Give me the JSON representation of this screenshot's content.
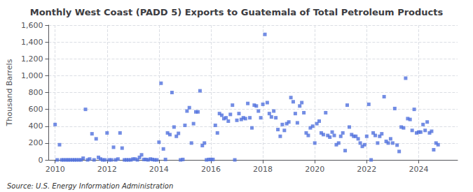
{
  "chart_data": {
    "type": "scatter",
    "title": "Monthly West Coast (PADD 5) Exports to Guatemala of Total Petroleum Products",
    "ylabel": "Thousand Barrels",
    "annotations": [
      "Source: U.S. Energy Information Administration"
    ],
    "marker": "square",
    "grid": true,
    "xlim": [
      2009.75,
      2025.5
    ],
    "xticks": [
      2010,
      2012,
      2014,
      2016,
      2018,
      2020,
      2022,
      2024
    ],
    "ylim": [
      0,
      1600
    ],
    "yticks": [
      0,
      200,
      400,
      600,
      800,
      {
        "value": 1000,
        "label": "1,000"
      },
      {
        "value": 1200,
        "label": "1,200"
      },
      {
        "value": 1400,
        "label": "1,400"
      },
      {
        "value": 1600,
        "label": "1,600"
      }
    ],
    "x": [
      2010.0,
      2010.08,
      2010.17,
      2010.25,
      2010.33,
      2010.42,
      2010.5,
      2010.58,
      2010.67,
      2010.75,
      2010.83,
      2010.92,
      2011.0,
      2011.08,
      2011.17,
      2011.25,
      2011.33,
      2011.42,
      2011.5,
      2011.58,
      2011.67,
      2011.75,
      2011.83,
      2011.92,
      2012.0,
      2012.08,
      2012.17,
      2012.25,
      2012.33,
      2012.42,
      2012.5,
      2012.58,
      2012.67,
      2012.75,
      2012.83,
      2012.92,
      2013.0,
      2013.08,
      2013.17,
      2013.25,
      2013.33,
      2013.42,
      2013.5,
      2013.58,
      2013.67,
      2013.75,
      2013.83,
      2013.92,
      2014.0,
      2014.08,
      2014.17,
      2014.25,
      2014.33,
      2014.42,
      2014.5,
      2014.58,
      2014.67,
      2014.75,
      2014.83,
      2014.92,
      2015.0,
      2015.08,
      2015.17,
      2015.25,
      2015.33,
      2015.42,
      2015.5,
      2015.58,
      2015.67,
      2015.75,
      2015.83,
      2015.92,
      2016.0,
      2016.08,
      2016.17,
      2016.25,
      2016.33,
      2016.42,
      2016.5,
      2016.58,
      2016.67,
      2016.75,
      2016.83,
      2016.92,
      2017.0,
      2017.08,
      2017.17,
      2017.25,
      2017.33,
      2017.42,
      2017.5,
      2017.58,
      2017.67,
      2017.75,
      2017.83,
      2017.92,
      2018.0,
      2018.08,
      2018.17,
      2018.25,
      2018.33,
      2018.42,
      2018.5,
      2018.58,
      2018.67,
      2018.75,
      2018.83,
      2018.92,
      2019.0,
      2019.08,
      2019.17,
      2019.25,
      2019.33,
      2019.42,
      2019.5,
      2019.58,
      2019.67,
      2019.75,
      2019.83,
      2019.92,
      2020.0,
      2020.08,
      2020.17,
      2020.25,
      2020.33,
      2020.42,
      2020.5,
      2020.58,
      2020.67,
      2020.75,
      2020.83,
      2020.92,
      2021.0,
      2021.08,
      2021.17,
      2021.25,
      2021.33,
      2021.42,
      2021.5,
      2021.58,
      2021.67,
      2021.75,
      2021.83,
      2021.92,
      2022.0,
      2022.08,
      2022.17,
      2022.25,
      2022.33,
      2022.42,
      2022.5,
      2022.58,
      2022.67,
      2022.75,
      2022.83,
      2022.92,
      2023.0,
      2023.08,
      2023.17,
      2023.25,
      2023.33,
      2023.42,
      2023.5,
      2023.58,
      2023.67,
      2023.75,
      2023.83,
      2023.92,
      2024.0,
      2024.08,
      2024.17,
      2024.25,
      2024.33,
      2024.42,
      2024.5,
      2024.58,
      2024.67,
      2024.75
    ],
    "values": [
      420,
      0,
      180,
      0,
      0,
      0,
      0,
      0,
      0,
      0,
      0,
      0,
      0,
      20,
      600,
      0,
      10,
      310,
      0,
      250,
      30,
      10,
      0,
      0,
      320,
      0,
      0,
      150,
      0,
      10,
      320,
      140,
      0,
      0,
      0,
      0,
      10,
      10,
      0,
      30,
      60,
      5,
      5,
      0,
      10,
      5,
      0,
      0,
      210,
      910,
      130,
      5,
      320,
      300,
      800,
      390,
      280,
      315,
      0,
      5,
      410,
      580,
      620,
      200,
      430,
      570,
      570,
      820,
      170,
      200,
      0,
      5,
      5,
      5,
      410,
      320,
      550,
      530,
      490,
      500,
      460,
      540,
      650,
      0,
      470,
      550,
      480,
      500,
      490,
      670,
      500,
      380,
      650,
      640,
      580,
      500,
      660,
      1490,
      680,
      550,
      510,
      580,
      500,
      360,
      280,
      420,
      350,
      430,
      450,
      740,
      690,
      550,
      440,
      640,
      680,
      560,
      320,
      290,
      380,
      400,
      200,
      430,
      460,
      320,
      300,
      560,
      290,
      270,
      330,
      290,
      180,
      200,
      280,
      320,
      110,
      650,
      390,
      300,
      280,
      280,
      250,
      200,
      160,
      180,
      280,
      660,
      0,
      320,
      290,
      200,
      280,
      310,
      750,
      220,
      200,
      250,
      200,
      610,
      175,
      100,
      390,
      380,
      970,
      490,
      480,
      350,
      600,
      320,
      330,
      330,
      420,
      350,
      450,
      320,
      340,
      120,
      200,
      180
    ]
  }
}
